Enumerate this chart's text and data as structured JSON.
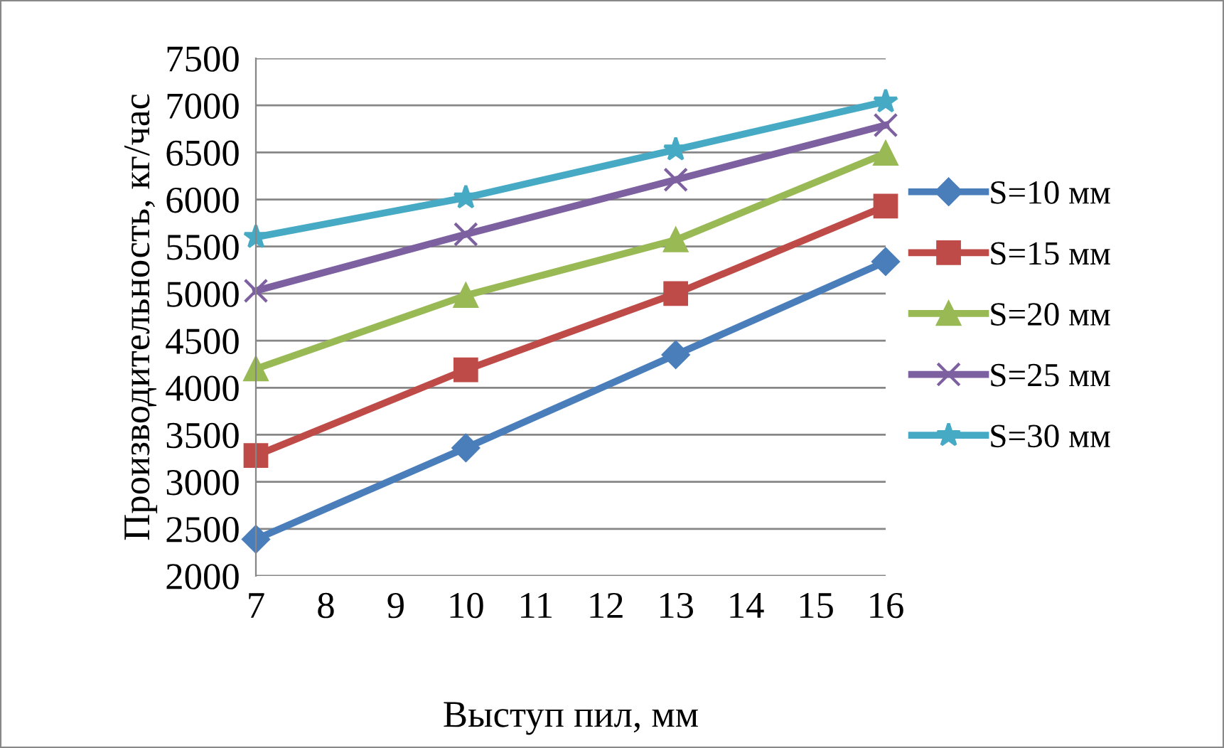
{
  "chart_data": {
    "type": "line",
    "xlabel": "Выступ пил, мм",
    "ylabel": "Производительность, кг/час",
    "x": [
      7,
      10,
      13,
      16
    ],
    "xlim": [
      7,
      16
    ],
    "xticks": [
      7,
      8,
      9,
      10,
      11,
      12,
      13,
      14,
      15,
      16
    ],
    "ylim": [
      2000,
      7500
    ],
    "yticks": [
      2000,
      2500,
      3000,
      3500,
      4000,
      4500,
      5000,
      5500,
      6000,
      6500,
      7000,
      7500
    ],
    "grid": "y",
    "legend": "right",
    "line_style": "solid",
    "series": [
      {
        "name": "S=10 мм",
        "color": "#4a7ebb",
        "marker": "diamond",
        "values": [
          2390,
          3360,
          4350,
          5340
        ]
      },
      {
        "name": "S=15 мм",
        "color": "#be4b48",
        "marker": "square",
        "values": [
          3280,
          4190,
          5000,
          5930
        ]
      },
      {
        "name": "S=20 мм",
        "color": "#98b954",
        "marker": "triangle",
        "values": [
          4200,
          4980,
          5570,
          6490
        ]
      },
      {
        "name": "S=25 мм",
        "color": "#7d60a0",
        "marker": "cross",
        "values": [
          5030,
          5630,
          6210,
          6790
        ]
      },
      {
        "name": "S=30 мм",
        "color": "#46aac5",
        "marker": "star",
        "values": [
          5600,
          6020,
          6530,
          7040
        ]
      }
    ]
  }
}
